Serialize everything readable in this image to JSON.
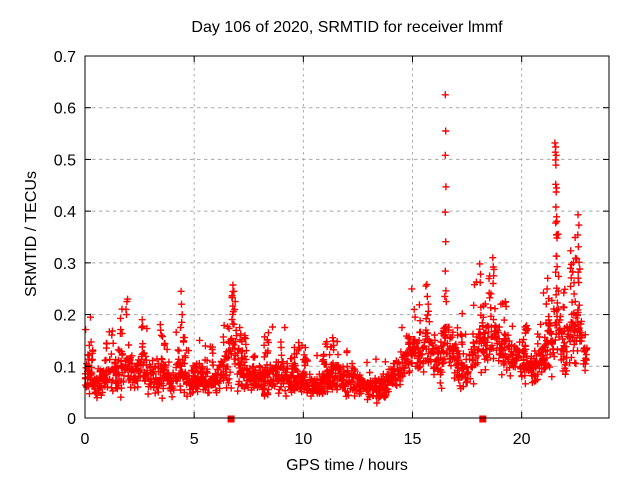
{
  "window": {
    "background": "#ffffff"
  },
  "chart_data": {
    "type": "scatter",
    "title": "Day 106 of 2020, SRMTID for receiver lmmf",
    "xlabel": "GPS time / hours",
    "ylabel": "SRMTID / TECUs",
    "xlim": [
      0,
      24
    ],
    "ylim": [
      0,
      0.7
    ],
    "xticks": [
      0,
      5,
      10,
      15,
      20
    ],
    "xtick_labels": [
      "0",
      "5",
      "10",
      "15",
      "20"
    ],
    "yticks": [
      0,
      0.1,
      0.2,
      0.3,
      0.4,
      0.5,
      0.6,
      0.7
    ],
    "ytick_labels": [
      "0",
      "0.1",
      "0.2",
      "0.3",
      "0.4",
      "0.5",
      "0.6",
      "0.7"
    ],
    "grid": true,
    "grid_color": "#a8a8a8",
    "frame_color": "#000000",
    "marker": "plus",
    "marker_color": "#ff0000",
    "series_name": "SRMTID",
    "x_end": 23.0,
    "band_profile": [
      [
        0.0,
        0.085,
        0.045
      ],
      [
        0.5,
        0.07,
        0.035
      ],
      [
        1.0,
        0.075,
        0.04
      ],
      [
        1.5,
        0.09,
        0.05
      ],
      [
        1.95,
        0.1,
        0.06
      ],
      [
        2.3,
        0.08,
        0.04
      ],
      [
        2.6,
        0.09,
        0.05
      ],
      [
        3.0,
        0.08,
        0.045
      ],
      [
        3.5,
        0.085,
        0.05
      ],
      [
        4.0,
        0.07,
        0.035
      ],
      [
        4.4,
        0.09,
        0.055
      ],
      [
        4.8,
        0.07,
        0.035
      ],
      [
        5.2,
        0.08,
        0.045
      ],
      [
        5.6,
        0.065,
        0.03
      ],
      [
        6.0,
        0.075,
        0.04
      ],
      [
        6.4,
        0.09,
        0.05
      ],
      [
        6.8,
        0.14,
        0.08
      ],
      [
        7.1,
        0.11,
        0.06
      ],
      [
        7.4,
        0.08,
        0.04
      ],
      [
        7.8,
        0.07,
        0.035
      ],
      [
        8.2,
        0.08,
        0.045
      ],
      [
        8.6,
        0.08,
        0.045
      ],
      [
        9.0,
        0.085,
        0.05
      ],
      [
        9.4,
        0.075,
        0.04
      ],
      [
        10.0,
        0.065,
        0.035
      ],
      [
        10.5,
        0.06,
        0.03
      ],
      [
        11.0,
        0.07,
        0.04
      ],
      [
        11.5,
        0.08,
        0.045
      ],
      [
        12.0,
        0.065,
        0.035
      ],
      [
        12.5,
        0.07,
        0.035
      ],
      [
        13.0,
        0.06,
        0.03
      ],
      [
        13.5,
        0.055,
        0.035
      ],
      [
        14.0,
        0.07,
        0.04
      ],
      [
        14.5,
        0.1,
        0.05
      ],
      [
        15.0,
        0.13,
        0.06
      ],
      [
        15.4,
        0.12,
        0.05
      ],
      [
        15.7,
        0.15,
        0.065
      ],
      [
        16.0,
        0.13,
        0.06
      ],
      [
        16.3,
        0.11,
        0.075
      ],
      [
        16.55,
        0.17,
        0.07
      ],
      [
        16.8,
        0.12,
        0.06
      ],
      [
        17.2,
        0.09,
        0.05
      ],
      [
        17.6,
        0.1,
        0.05
      ],
      [
        18.0,
        0.15,
        0.07
      ],
      [
        18.35,
        0.13,
        0.065
      ],
      [
        18.7,
        0.17,
        0.085
      ],
      [
        19.0,
        0.13,
        0.06
      ],
      [
        19.4,
        0.12,
        0.05
      ],
      [
        19.8,
        0.11,
        0.045
      ],
      [
        20.2,
        0.1,
        0.04
      ],
      [
        20.6,
        0.1,
        0.045
      ],
      [
        21.0,
        0.12,
        0.06
      ],
      [
        21.4,
        0.16,
        0.085
      ],
      [
        21.65,
        0.2,
        0.095
      ],
      [
        21.9,
        0.13,
        0.06
      ],
      [
        22.2,
        0.15,
        0.075
      ],
      [
        22.55,
        0.18,
        0.095
      ],
      [
        22.8,
        0.12,
        0.05
      ],
      [
        23.0,
        0.11,
        0.04
      ]
    ],
    "outliers": [
      [
        0.25,
        0.195
      ],
      [
        1.88,
        0.21
      ],
      [
        1.92,
        0.225
      ],
      [
        1.95,
        0.23
      ],
      [
        1.9,
        0.2
      ],
      [
        2.62,
        0.19
      ],
      [
        2.6,
        0.175
      ],
      [
        3.5,
        0.16
      ],
      [
        4.38,
        0.175
      ],
      [
        4.4,
        0.245
      ],
      [
        4.42,
        0.22
      ],
      [
        4.45,
        0.2
      ],
      [
        4.43,
        0.185
      ],
      [
        5.25,
        0.15
      ],
      [
        6.82,
        0.245
      ],
      [
        6.88,
        0.225
      ],
      [
        6.85,
        0.21
      ],
      [
        8.4,
        0.165
      ],
      [
        9.15,
        0.175
      ],
      [
        11.55,
        0.148
      ],
      [
        15.08,
        0.21
      ],
      [
        15.12,
        0.195
      ],
      [
        15.68,
        0.235
      ],
      [
        15.72,
        0.22
      ],
      [
        16.5,
        0.625
      ],
      [
        16.52,
        0.555
      ],
      [
        16.5,
        0.508
      ],
      [
        16.53,
        0.447
      ],
      [
        16.5,
        0.398
      ],
      [
        16.52,
        0.341
      ],
      [
        16.5,
        0.284
      ],
      [
        16.53,
        0.246
      ],
      [
        16.48,
        0.235
      ],
      [
        16.55,
        0.225
      ],
      [
        18.08,
        0.298
      ],
      [
        18.12,
        0.278
      ],
      [
        18.1,
        0.262
      ],
      [
        18.68,
        0.31
      ],
      [
        18.7,
        0.292
      ],
      [
        18.72,
        0.275
      ],
      [
        18.69,
        0.26
      ],
      [
        19.05,
        0.22
      ],
      [
        21.52,
        0.532
      ],
      [
        21.56,
        0.524
      ],
      [
        21.54,
        0.514
      ],
      [
        21.58,
        0.508
      ],
      [
        21.55,
        0.499
      ],
      [
        21.57,
        0.489
      ],
      [
        21.56,
        0.452
      ],
      [
        21.6,
        0.445
      ],
      [
        21.58,
        0.437
      ],
      [
        21.57,
        0.408
      ],
      [
        21.6,
        0.389
      ],
      [
        21.56,
        0.377
      ],
      [
        21.59,
        0.354
      ],
      [
        21.62,
        0.348
      ],
      [
        21.58,
        0.313
      ],
      [
        21.56,
        0.282
      ],
      [
        21.6,
        0.251
      ],
      [
        22.58,
        0.393
      ],
      [
        22.62,
        0.373
      ],
      [
        22.57,
        0.354
      ],
      [
        22.6,
        0.331
      ],
      [
        22.63,
        0.301
      ],
      [
        22.59,
        0.282
      ],
      [
        22.61,
        0.262
      ],
      [
        22.4,
        0.24
      ],
      [
        22.45,
        0.225
      ]
    ],
    "zero_markers": {
      "marker": "square",
      "color": "#ff0000",
      "x": [
        6.69,
        18.22
      ],
      "y": 0
    },
    "legend": "none"
  }
}
